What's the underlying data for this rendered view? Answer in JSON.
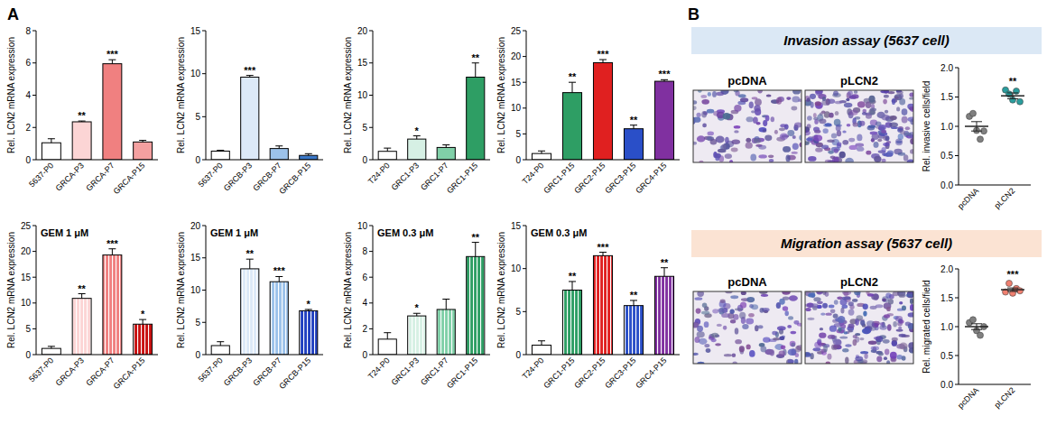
{
  "panel_labels": [
    "A",
    "B"
  ],
  "assays": [
    {
      "title": "Invasion assay (5637 cell)",
      "images": [
        "pcDNA",
        "pLCN2"
      ]
    },
    {
      "title": "Migration assay (5637 cell)",
      "images": [
        "pcDNA",
        "pLCN2"
      ]
    }
  ],
  "chart_data": [
    {
      "type": "bar",
      "y_label": "Rel. LCN2 mRNA expression",
      "categories": [
        "5637-P0",
        "GRCA-P3",
        "GRCA-P7",
        "GRCA-P15"
      ],
      "values": [
        1.05,
        2.35,
        5.95,
        1.1
      ],
      "errors": [
        0.25,
        0.05,
        0.25,
        0.1
      ],
      "significance": [
        null,
        "**",
        "***",
        null
      ],
      "colors": [
        "#ffffff",
        "#fcd5d5",
        "#f08080",
        "#f4a0a0"
      ],
      "ylim": [
        0,
        8
      ],
      "yticks": [
        0,
        2,
        4,
        6,
        8
      ]
    },
    {
      "type": "bar",
      "y_label": "Rel. LCN2 mRNA expression",
      "categories": [
        "5637-P0",
        "GRCB-P3",
        "GRCB-P7",
        "GRCB-P15"
      ],
      "values": [
        1.0,
        9.6,
        1.3,
        0.5
      ],
      "errors": [
        0.1,
        0.2,
        0.3,
        0.2
      ],
      "significance": [
        null,
        "***",
        null,
        null
      ],
      "colors": [
        "#ffffff",
        "#dce9f8",
        "#9cc2ea",
        "#3a78c8"
      ],
      "ylim": [
        0,
        15
      ],
      "yticks": [
        0,
        5,
        10,
        15
      ]
    },
    {
      "type": "bar",
      "y_label": "Rel. LCN2 mRNA expression",
      "categories": [
        "T24-P0",
        "GRC1-P3",
        "GRC1-P7",
        "GRC1-P15"
      ],
      "values": [
        1.3,
        3.2,
        1.9,
        12.8
      ],
      "errors": [
        0.5,
        0.5,
        0.4,
        2.2
      ],
      "significance": [
        null,
        "*",
        null,
        "**"
      ],
      "colors": [
        "#ffffff",
        "#d6f0e4",
        "#80d0a8",
        "#2e9e64"
      ],
      "ylim": [
        0,
        20
      ],
      "yticks": [
        0,
        5,
        10,
        15,
        20
      ]
    },
    {
      "type": "bar",
      "y_label": "Rel. LCN2 mRNA expression",
      "categories": [
        "T24-P0",
        "GRC1-P15",
        "GRC2-P15",
        "GRC3-P15",
        "GRC4-P15"
      ],
      "values": [
        1.2,
        13,
        18.8,
        6,
        15.2
      ],
      "errors": [
        0.5,
        2,
        0.6,
        0.7,
        0.3
      ],
      "significance": [
        null,
        "**",
        "***",
        "**",
        "***"
      ],
      "colors": [
        "#ffffff",
        "#2e9e64",
        "#e02020",
        "#2a4fc8",
        "#8030a0"
      ],
      "ylim": [
        0,
        25
      ],
      "yticks": [
        0,
        5,
        10,
        15,
        20,
        25
      ]
    },
    {
      "type": "bar",
      "y_label": "Rel. LCN2 mRNA expression",
      "annotation": "GEM 1 μM",
      "categories": [
        "5637-P0",
        "GRCA-P3",
        "GRCA-P7",
        "GRCA-P15"
      ],
      "values": [
        1.2,
        10.9,
        19.3,
        5.9
      ],
      "errors": [
        0.4,
        0.9,
        1.2,
        0.9
      ],
      "significance": [
        null,
        "**",
        "***",
        "*"
      ],
      "colors": [
        "#ffffff",
        "#fcd5d5",
        "#f08080",
        "#c81010"
      ],
      "ylim": [
        0,
        25
      ],
      "yticks": [
        0,
        5,
        10,
        15,
        20,
        25
      ]
    },
    {
      "type": "bar",
      "y_label": "Rel. LCN2 mRNA expression",
      "annotation": "GEM 1 μM",
      "categories": [
        "5637-P0",
        "GRCB-P3",
        "GRCB-P7",
        "GRCB-P15"
      ],
      "values": [
        1.4,
        13.3,
        11.3,
        6.8
      ],
      "errors": [
        0.6,
        1.5,
        0.8,
        0.2
      ],
      "significance": [
        null,
        "**",
        "***",
        "*"
      ],
      "colors": [
        "#ffffff",
        "#dce9f8",
        "#9cc2ea",
        "#2040c0"
      ],
      "ylim": [
        0,
        20
      ],
      "yticks": [
        0,
        5,
        10,
        15,
        20
      ]
    },
    {
      "type": "bar",
      "y_label": "Rel. LCN2 mRNA expression",
      "annotation": "GEM 0.3 μM",
      "categories": [
        "T24-P0",
        "GRC1-P3",
        "GRC1-P7",
        "GRC1-P15"
      ],
      "values": [
        1.2,
        3.0,
        3.5,
        7.6
      ],
      "errors": [
        0.5,
        0.2,
        0.8,
        1.1
      ],
      "significance": [
        null,
        "*",
        null,
        "**"
      ],
      "colors": [
        "#ffffff",
        "#d6f0e4",
        "#80d0a8",
        "#2e9e64"
      ],
      "ylim": [
        0,
        10
      ],
      "yticks": [
        0,
        2,
        4,
        6,
        8,
        10
      ]
    },
    {
      "type": "bar",
      "y_label": "Rel. LCN2 mRNA expression",
      "annotation": "GEM 0.3 μM",
      "categories": [
        "T24-P0",
        "GRC1-P15",
        "GRC2-P15",
        "GRC3-P15",
        "GRC4-P15"
      ],
      "values": [
        1.1,
        7.5,
        11.5,
        5.7,
        9.1
      ],
      "errors": [
        0.5,
        1.0,
        0.4,
        0.6,
        1.0
      ],
      "significance": [
        null,
        "**",
        "***",
        "**",
        "**"
      ],
      "colors": [
        "#ffffff",
        "#2e9e64",
        "#e02020",
        "#2a4fc8",
        "#8030a0"
      ],
      "ylim": [
        0,
        15
      ],
      "yticks": [
        0,
        5,
        10,
        15
      ]
    },
    {
      "type": "scatter",
      "y_label": "Rel. invasive cells/field",
      "categories": [
        "pcDNA",
        "pLCN2"
      ],
      "values": [
        [
          1.17,
          1.22,
          0.93,
          0.78,
          0.92
        ],
        [
          1.62,
          1.55,
          1.45,
          1.6,
          1.42
        ]
      ],
      "means": [
        1.0,
        1.52
      ],
      "errors": [
        0.08,
        0.05
      ],
      "significance": [
        null,
        "**"
      ],
      "colors": [
        "#808080",
        "#2a9d9d"
      ],
      "ylim": [
        0,
        2
      ],
      "yticks": [
        {
          "value": 0,
          "label": "0.0"
        },
        {
          "value": 0.5,
          "label": "0.5"
        },
        {
          "value": 1,
          "label": "1.0"
        },
        {
          "value": 1.5,
          "label": "1.5"
        },
        {
          "value": 2,
          "label": "2.0"
        }
      ]
    },
    {
      "type": "scatter",
      "y_label": "Rel. migrated cells/field",
      "categories": [
        "pcDNA",
        "pLCN2"
      ],
      "values": [
        [
          1.07,
          1.12,
          0.93,
          0.85,
          1.0
        ],
        [
          1.6,
          1.75,
          1.58,
          1.66,
          1.62
        ]
      ],
      "means": [
        1.0,
        1.64
      ],
      "errors": [
        0.05,
        0.03
      ],
      "significance": [
        null,
        "***"
      ],
      "colors": [
        "#808080",
        "#f08070"
      ],
      "ylim": [
        0,
        2
      ],
      "yticks": [
        {
          "value": 0,
          "label": "0.0"
        },
        {
          "value": 0.5,
          "label": "0.5"
        },
        {
          "value": 1,
          "label": "1.0"
        },
        {
          "value": 1.5,
          "label": "1.5"
        },
        {
          "value": 2,
          "label": "2.0"
        }
      ]
    }
  ]
}
